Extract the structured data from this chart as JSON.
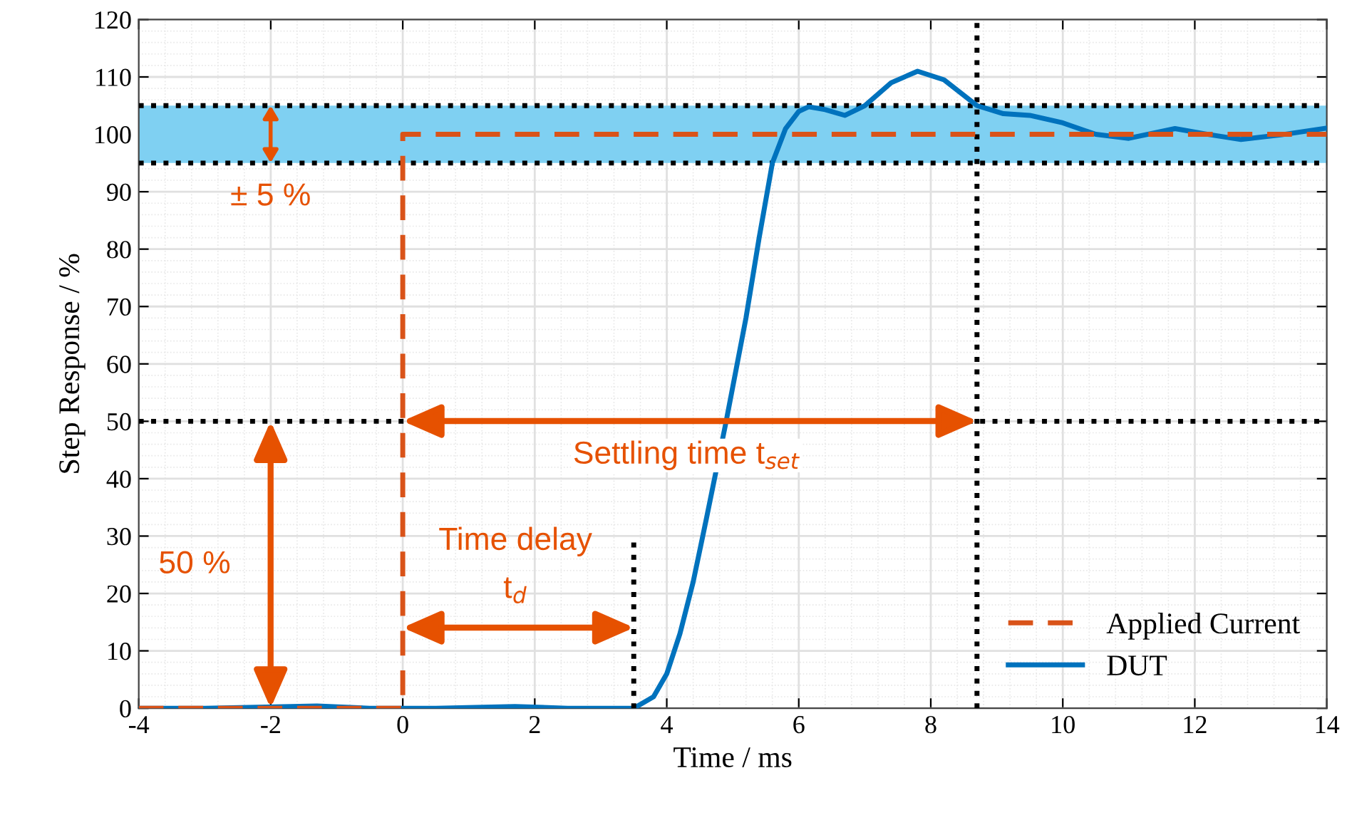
{
  "chart_data": {
    "type": "line",
    "xlabel": "Time / ms",
    "ylabel": "Step Response / %",
    "xlim": [
      -4,
      14
    ],
    "xticks": [
      -4,
      -2,
      0,
      2,
      4,
      6,
      8,
      10,
      12,
      14
    ],
    "ylim": [
      0,
      120
    ],
    "yticks": [
      0,
      10,
      20,
      30,
      40,
      50,
      60,
      70,
      80,
      90,
      100,
      110,
      120
    ],
    "grid": true,
    "legend": "bottom right",
    "series": [
      {
        "name": "DUT",
        "color": "#0072bd",
        "line_style": "solid",
        "x": [
          -4,
          -3,
          -1.3,
          -0.5,
          0.5,
          1.7,
          2.5,
          3.5,
          3.8,
          4.0,
          4.2,
          4.4,
          4.6,
          4.9,
          5.2,
          5.4,
          5.6,
          5.8,
          6.0,
          6.15,
          6.4,
          6.7,
          7.0,
          7.4,
          7.8,
          8.2,
          8.7,
          9.1,
          9.5,
          10,
          10.5,
          11,
          11.7,
          12.2,
          12.7,
          13.3,
          14
        ],
        "values": [
          0,
          0,
          0.4,
          0,
          0,
          0.3,
          0,
          0,
          2,
          6,
          13,
          22,
          33,
          50,
          68,
          82,
          95,
          101,
          104,
          104.8,
          104.3,
          103.3,
          105,
          109,
          111,
          109.5,
          105,
          103.6,
          103.3,
          102,
          100,
          99.3,
          101,
          100,
          99.1,
          99.9,
          101.1
        ]
      },
      {
        "name": "Applied Current",
        "color": "#d95319",
        "line_style": "dashed",
        "x": [
          -4,
          0,
          0,
          14
        ],
        "values": [
          0,
          0,
          100,
          100
        ]
      },
      {
        "color": "#000000",
        "line_style": "dotted",
        "x": [
          3.5,
          3.5
        ],
        "values": [
          0,
          30
        ]
      }
    ],
    "bands": [
      {
        "axis": "y",
        "from": 95,
        "to": 105,
        "color": "#7fd0f2"
      }
    ],
    "ref_lines": [
      {
        "axis": "y",
        "value": 95,
        "color": "#000000",
        "line_style": "dotted"
      },
      {
        "axis": "y",
        "value": 105,
        "color": "#000000",
        "line_style": "dotted"
      },
      {
        "axis": "y",
        "value": 50,
        "color": "#000000",
        "line_style": "dotted"
      },
      {
        "axis": "x",
        "value": 8.7,
        "color": "#000000",
        "line_style": "dotted"
      }
    ],
    "annotations": [
      "± 5 %",
      "50 %",
      "Settling time t$_{set}$",
      "Time delay",
      "t$_{d}$"
    ]
  }
}
